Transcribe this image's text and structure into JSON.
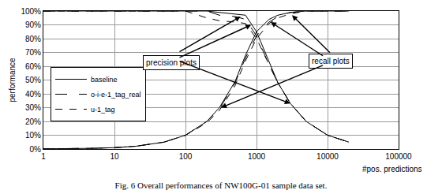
{
  "chart_data": {
    "type": "line",
    "title": "Fig. 6 Overall performances of NW100G-01 sample data set.",
    "x_label": "#pos. predictions",
    "y_label": "performance",
    "annotations": [
      "precision plots",
      "recall plots"
    ],
    "log": "x",
    "grid": true,
    "legend": "lower left",
    "xlim": [
      1,
      100000
    ],
    "xticks": [
      1,
      10,
      100,
      1000,
      10000,
      100000
    ],
    "ylim": [
      0,
      100
    ],
    "yticks": [
      {
        "value": 0,
        "label": "0%"
      },
      {
        "value": 10,
        "label": "10%"
      },
      {
        "value": 20,
        "label": "20%"
      },
      {
        "value": 30,
        "label": "30%"
      },
      {
        "value": 40,
        "label": "40%"
      },
      {
        "value": 50,
        "label": "50%"
      },
      {
        "value": 60,
        "label": "60%"
      },
      {
        "value": 70,
        "label": "70%"
      },
      {
        "value": 80,
        "label": "80%"
      },
      {
        "value": 90,
        "label": "90%"
      },
      {
        "value": 100,
        "label": "100%"
      }
    ],
    "x": [
      1,
      2,
      5,
      10,
      20,
      50,
      100,
      200,
      300,
      500,
      700,
      1000,
      1500,
      2000,
      3000,
      5000,
      10000,
      20000
    ],
    "series": [
      {
        "name": "baseline",
        "color": "#000000",
        "line_style": "solid",
        "precision": [
          100,
          100,
          100,
          100,
          100,
          100,
          100,
          100,
          99,
          98,
          97,
          85,
          63,
          48,
          33,
          20,
          10,
          5
        ],
        "recall": [
          0.1,
          0.2,
          0.5,
          1,
          2,
          5,
          10,
          20,
          30,
          49,
          68,
          85,
          94,
          97,
          99,
          100,
          100,
          100
        ]
      },
      {
        "name": "o-i-e-1_tag_real",
        "color": "#000000",
        "line_style": "longdash",
        "precision": [
          100,
          100,
          100,
          100,
          100,
          100,
          100,
          100,
          97,
          96,
          94,
          82,
          61,
          48,
          33,
          20,
          10,
          5
        ],
        "recall": [
          0.1,
          0.2,
          0.5,
          1,
          2,
          5,
          10,
          20,
          29,
          48,
          66,
          82,
          92,
          96,
          99,
          100,
          100,
          100
        ]
      },
      {
        "name": "u-1_tag",
        "color": "#000000",
        "line_style": "dash",
        "precision": [
          100,
          100,
          100,
          100,
          100,
          100,
          100,
          95,
          93,
          92,
          91,
          80,
          61,
          48,
          33,
          20,
          10,
          5
        ],
        "recall": [
          0.1,
          0.2,
          0.5,
          1,
          2,
          5,
          10,
          19,
          28,
          46,
          64,
          80,
          91,
          95,
          98,
          100,
          100,
          100
        ]
      }
    ]
  }
}
